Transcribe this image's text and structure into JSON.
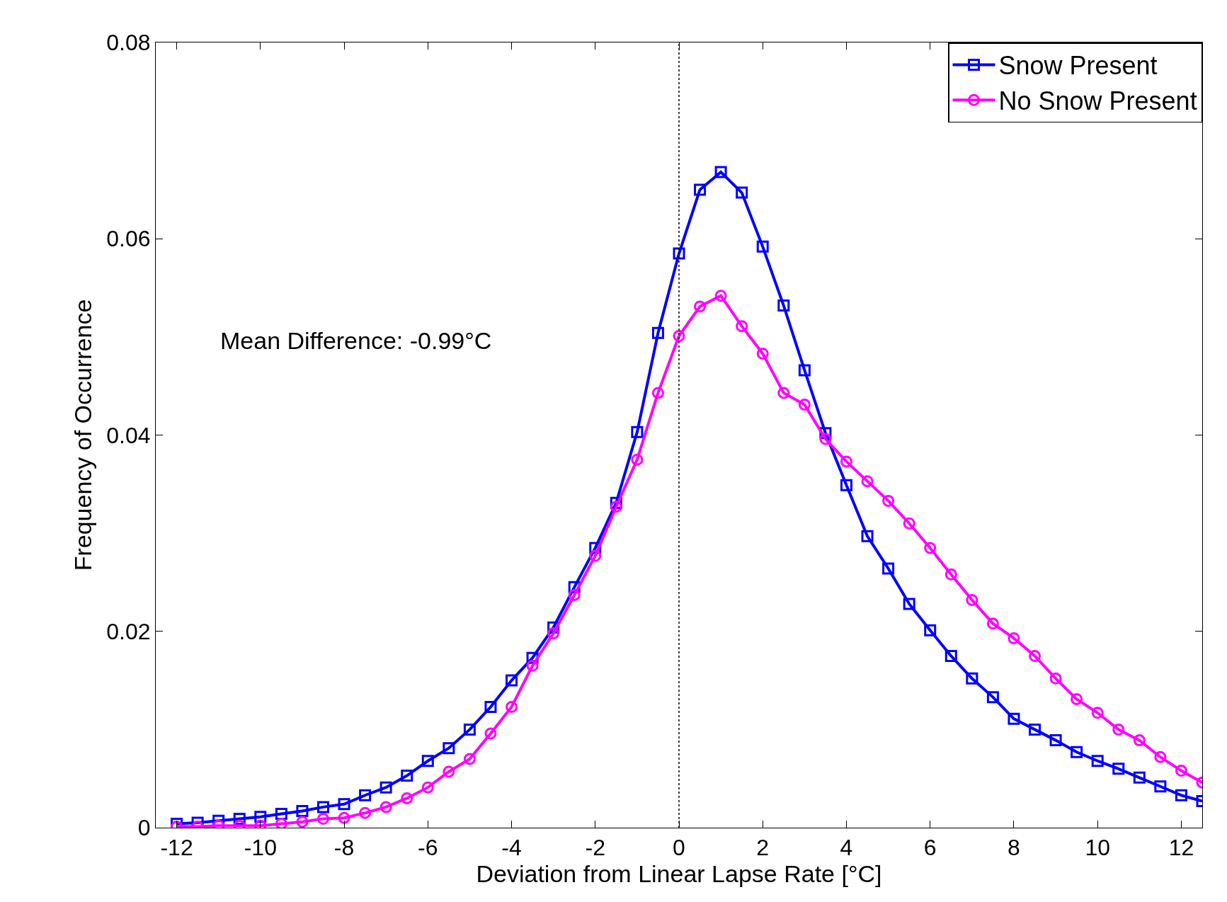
{
  "chart_data": {
    "type": "line",
    "xlabel": "Deviation from Linear Lapse Rate [°C]",
    "ylabel": "Frequency of Occurrence",
    "annotations": [
      "Mean Difference: -0.99°C"
    ],
    "x": [
      -12,
      -11.5,
      -11,
      -10.5,
      -10,
      -9.5,
      -9,
      -8.5,
      -8,
      -7.5,
      -7,
      -6.5,
      -6,
      -5.5,
      -5,
      -4.5,
      -4,
      -3.5,
      -3,
      -2.5,
      -2,
      -1.5,
      -1,
      -0.5,
      0,
      0.5,
      1,
      1.5,
      2,
      2.5,
      3,
      3.5,
      4,
      4.5,
      5,
      5.5,
      6,
      6.5,
      7,
      7.5,
      8,
      8.5,
      9,
      9.5,
      10,
      10.5,
      11,
      11.5,
      12,
      12.5
    ],
    "series": [
      {
        "name": "Snow Present",
        "color": "#0000ff",
        "marker": "square",
        "values": [
          0.0004,
          0.0005,
          0.0007,
          0.0009,
          0.0011,
          0.0014,
          0.0017,
          0.0021,
          0.0024,
          0.0033,
          0.0041,
          0.0053,
          0.0068,
          0.0081,
          0.01,
          0.0123,
          0.015,
          0.0173,
          0.0204,
          0.0245,
          0.0285,
          0.0331,
          0.0403,
          0.0504,
          0.0585,
          0.065,
          0.0668,
          0.0647,
          0.0592,
          0.0532,
          0.0466,
          0.0402,
          0.0349,
          0.0297,
          0.0264,
          0.0228,
          0.0201,
          0.0175,
          0.0152,
          0.0133,
          0.0111,
          0.01,
          0.0089,
          0.0077,
          0.0068,
          0.006,
          0.0051,
          0.0042,
          0.0033,
          0.0027
        ]
      },
      {
        "name": "No Snow Present",
        "color": "#ff00ff",
        "marker": "circle",
        "values": [
          0.0001,
          0.0001,
          0.0002,
          0.0002,
          0.0002,
          0.0004,
          0.0006,
          0.0009,
          0.001,
          0.0015,
          0.0021,
          0.003,
          0.0041,
          0.0057,
          0.007,
          0.0096,
          0.0123,
          0.0165,
          0.0198,
          0.0237,
          0.0277,
          0.0327,
          0.0375,
          0.0443,
          0.0501,
          0.0531,
          0.0542,
          0.0511,
          0.0483,
          0.0443,
          0.0431,
          0.0396,
          0.0373,
          0.0353,
          0.0333,
          0.031,
          0.0285,
          0.0258,
          0.0232,
          0.0208,
          0.0193,
          0.0175,
          0.0152,
          0.0131,
          0.0117,
          0.01,
          0.0089,
          0.0072,
          0.0058,
          0.0046
        ]
      }
    ],
    "xlim": [
      -12.5,
      12.5
    ],
    "xticks": [
      -12,
      -10,
      -8,
      -6,
      -4,
      -2,
      0,
      2,
      4,
      6,
      8,
      10,
      12
    ],
    "ylim": [
      0,
      0.08
    ],
    "yticks": [
      0,
      0.02,
      0.04,
      0.06,
      0.08
    ],
    "ref_lines": [
      {
        "axis": "x",
        "value": 0,
        "color": "#000000",
        "line_style": "dotted"
      }
    ],
    "legend": "top right",
    "line_style": "solid"
  }
}
